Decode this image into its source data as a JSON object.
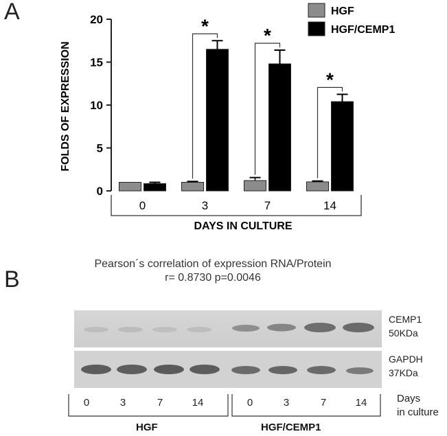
{
  "panel_a": "A",
  "panel_b": "B",
  "chart_data": {
    "type": "bar",
    "title": "",
    "xlabel": "DAYS IN CULTURE",
    "ylabel": "FOLDS OF EXPRESSION",
    "categories": [
      "0",
      "3",
      "7",
      "14"
    ],
    "ylim": [
      0,
      20
    ],
    "yticks": [
      0,
      5,
      10,
      15,
      20
    ],
    "series": [
      {
        "name": "HGF",
        "color": "#8c8c8c",
        "values": [
          1.0,
          1.0,
          1.2,
          1.05
        ],
        "errors": [
          0.0,
          0.1,
          0.35,
          0.1
        ]
      },
      {
        "name": "HGF/CEMP1",
        "color": "#000000",
        "values": [
          0.85,
          16.5,
          14.8,
          10.4
        ],
        "errors": [
          0.15,
          1.0,
          1.6,
          0.85
        ]
      }
    ],
    "significance": [
      {
        "category": "3",
        "label": "*"
      },
      {
        "category": "7",
        "label": "*"
      },
      {
        "category": "14",
        "label": "*"
      }
    ],
    "legend": "top-right",
    "grid": false
  },
  "blot": {
    "pearson_line1": "Pearson´s correlation of expression RNA/Protein",
    "pearson_line2": "r= 0.8730 p=0.0046",
    "bands": [
      {
        "name": "CEMP1",
        "size": "50KDa"
      },
      {
        "name": "GAPDH",
        "size": "37KDa"
      }
    ],
    "lanes": [
      "0",
      "3",
      "7",
      "14",
      "0",
      "3",
      "7",
      "14"
    ],
    "days_label_1": "Days",
    "days_label_2": "in culture",
    "groups": [
      "HGF",
      "HGF/CEMP1"
    ]
  }
}
